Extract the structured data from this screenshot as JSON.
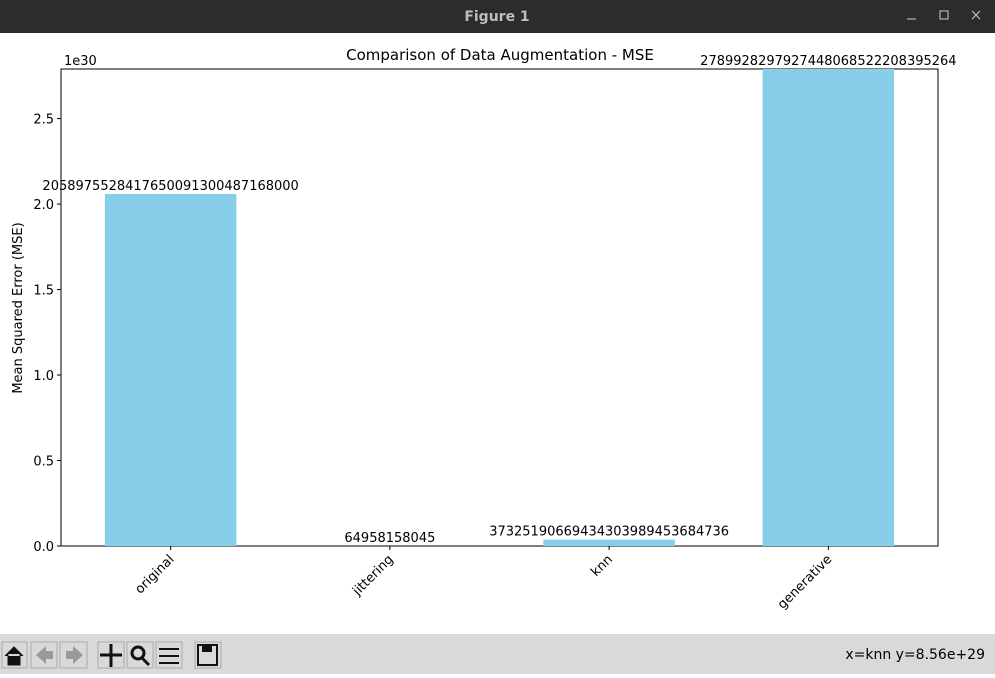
{
  "window": {
    "title": "Figure 1",
    "status": "x=knn y=8.56e+29"
  },
  "chart_data": {
    "type": "bar",
    "title": "Comparison of Data Augmentation - MSE",
    "y_label": "Mean Squared Error (MSE)",
    "y_offset_label": "1e30",
    "categories": [
      "original",
      "jittering",
      "knn",
      "generative"
    ],
    "values": [
      2.05897552841765e+30,
      64958158045,
      3.7325190669434304e+28,
      2.789928297927448e+30
    ],
    "value_labels": [
      "2058975528417650091300487168000",
      "64958158045",
      "37325190669434303989453684736",
      "2789928297927448068522208395264"
    ],
    "color": "#87ceeb",
    "ylim": [
      0,
      2.789928297927448e+30
    ],
    "yticks": [
      {
        "value": 0,
        "label": "0.0"
      },
      {
        "value": 5e+29,
        "label": "0.5"
      },
      {
        "value": 1e+30,
        "label": "1.0"
      },
      {
        "value": 1.5e+30,
        "label": "1.5"
      },
      {
        "value": 2e+30,
        "label": "2.0"
      },
      {
        "value": 2.5e+30,
        "label": "2.5"
      }
    ]
  }
}
